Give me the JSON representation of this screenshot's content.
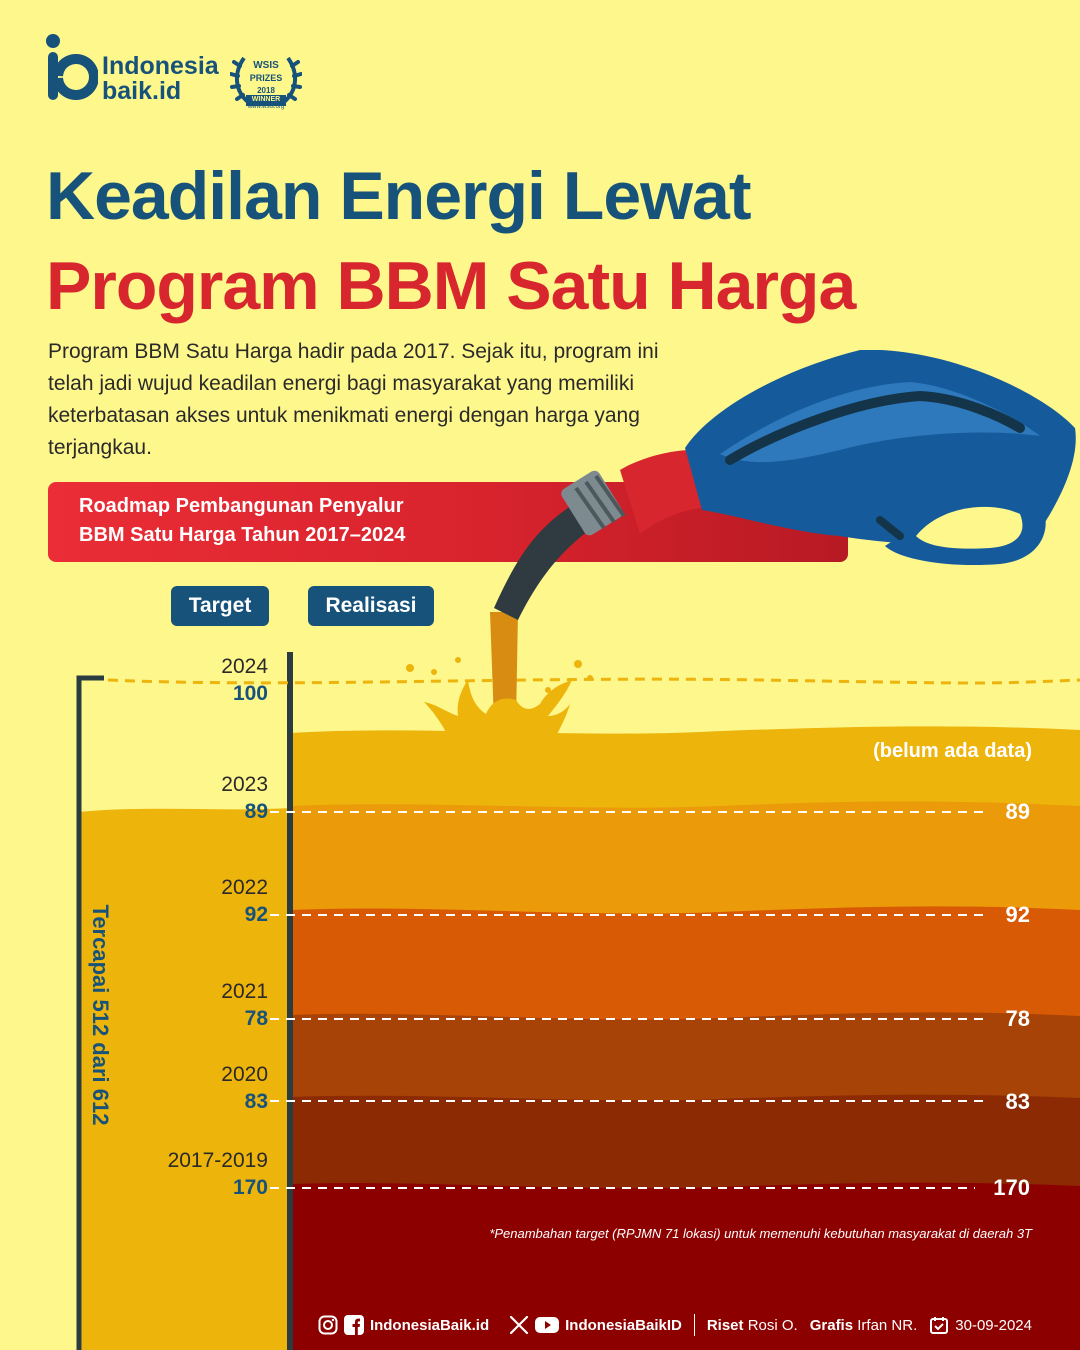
{
  "brand": {
    "logo_line1": "Indonesia",
    "logo_line2": "baik.id",
    "award_line1": "WSIS",
    "award_line2": "PRIZES",
    "award_line3": "2018",
    "award_line4": "WINNER",
    "award_url": "www.wsis.org"
  },
  "title": {
    "line1": "Keadilan Energi Lewat",
    "line2": "Program BBM Satu Harga"
  },
  "intro": "Program BBM Satu Harga hadir pada 2017. Sejak itu, program ini telah jadi wujud keadilan energi bagi masyarakat yang memiliki keterbatasan akses untuk menikmati energi dengan harga yang terjangkau.",
  "banner": {
    "line1": "Roadmap Pembangunan Penyalur",
    "line2": "BBM Satu Harga Tahun 2017–2024"
  },
  "labels": {
    "target": "Target",
    "realisasi": "Realisasi",
    "tercapai": "Tercapai 512 dari 612",
    "belum": "(belum ada data)"
  },
  "rows": [
    {
      "year": "2024",
      "target": "100",
      "realisasi": ""
    },
    {
      "year": "2023",
      "target": "89",
      "realisasi": "89"
    },
    {
      "year": "2022",
      "target": "92",
      "realisasi": "92"
    },
    {
      "year": "2021",
      "target": "78",
      "realisasi": "78"
    },
    {
      "year": "2020",
      "target": "83",
      "realisasi": "83"
    },
    {
      "year": "2017-2019",
      "target": "170",
      "realisasi": "170"
    }
  ],
  "note": "*Penambahan target (RPJMN 71 lokasi) untuk memenuhi kebutuhan masyarakat di daerah 3T",
  "footer": {
    "handle1": "IndonesiaBaik.id",
    "handle2": "IndonesiaBaikID",
    "riset_label": "Riset",
    "riset_name": "Rosi O.",
    "grafis_label": "Grafis",
    "grafis_name": "Irfan NR.",
    "date": "30-09-2024"
  },
  "colors": {
    "background": "#FEF78C",
    "navy": "#16527A",
    "red": "#D7262E",
    "layer_2024": "#EDB40B",
    "layer_2023": "#EB9A0A",
    "layer_2022": "#D95A04",
    "layer_2021": "#A74306",
    "layer_2020": "#8C2A04",
    "layer_2017_2019": "#8D0000"
  }
}
